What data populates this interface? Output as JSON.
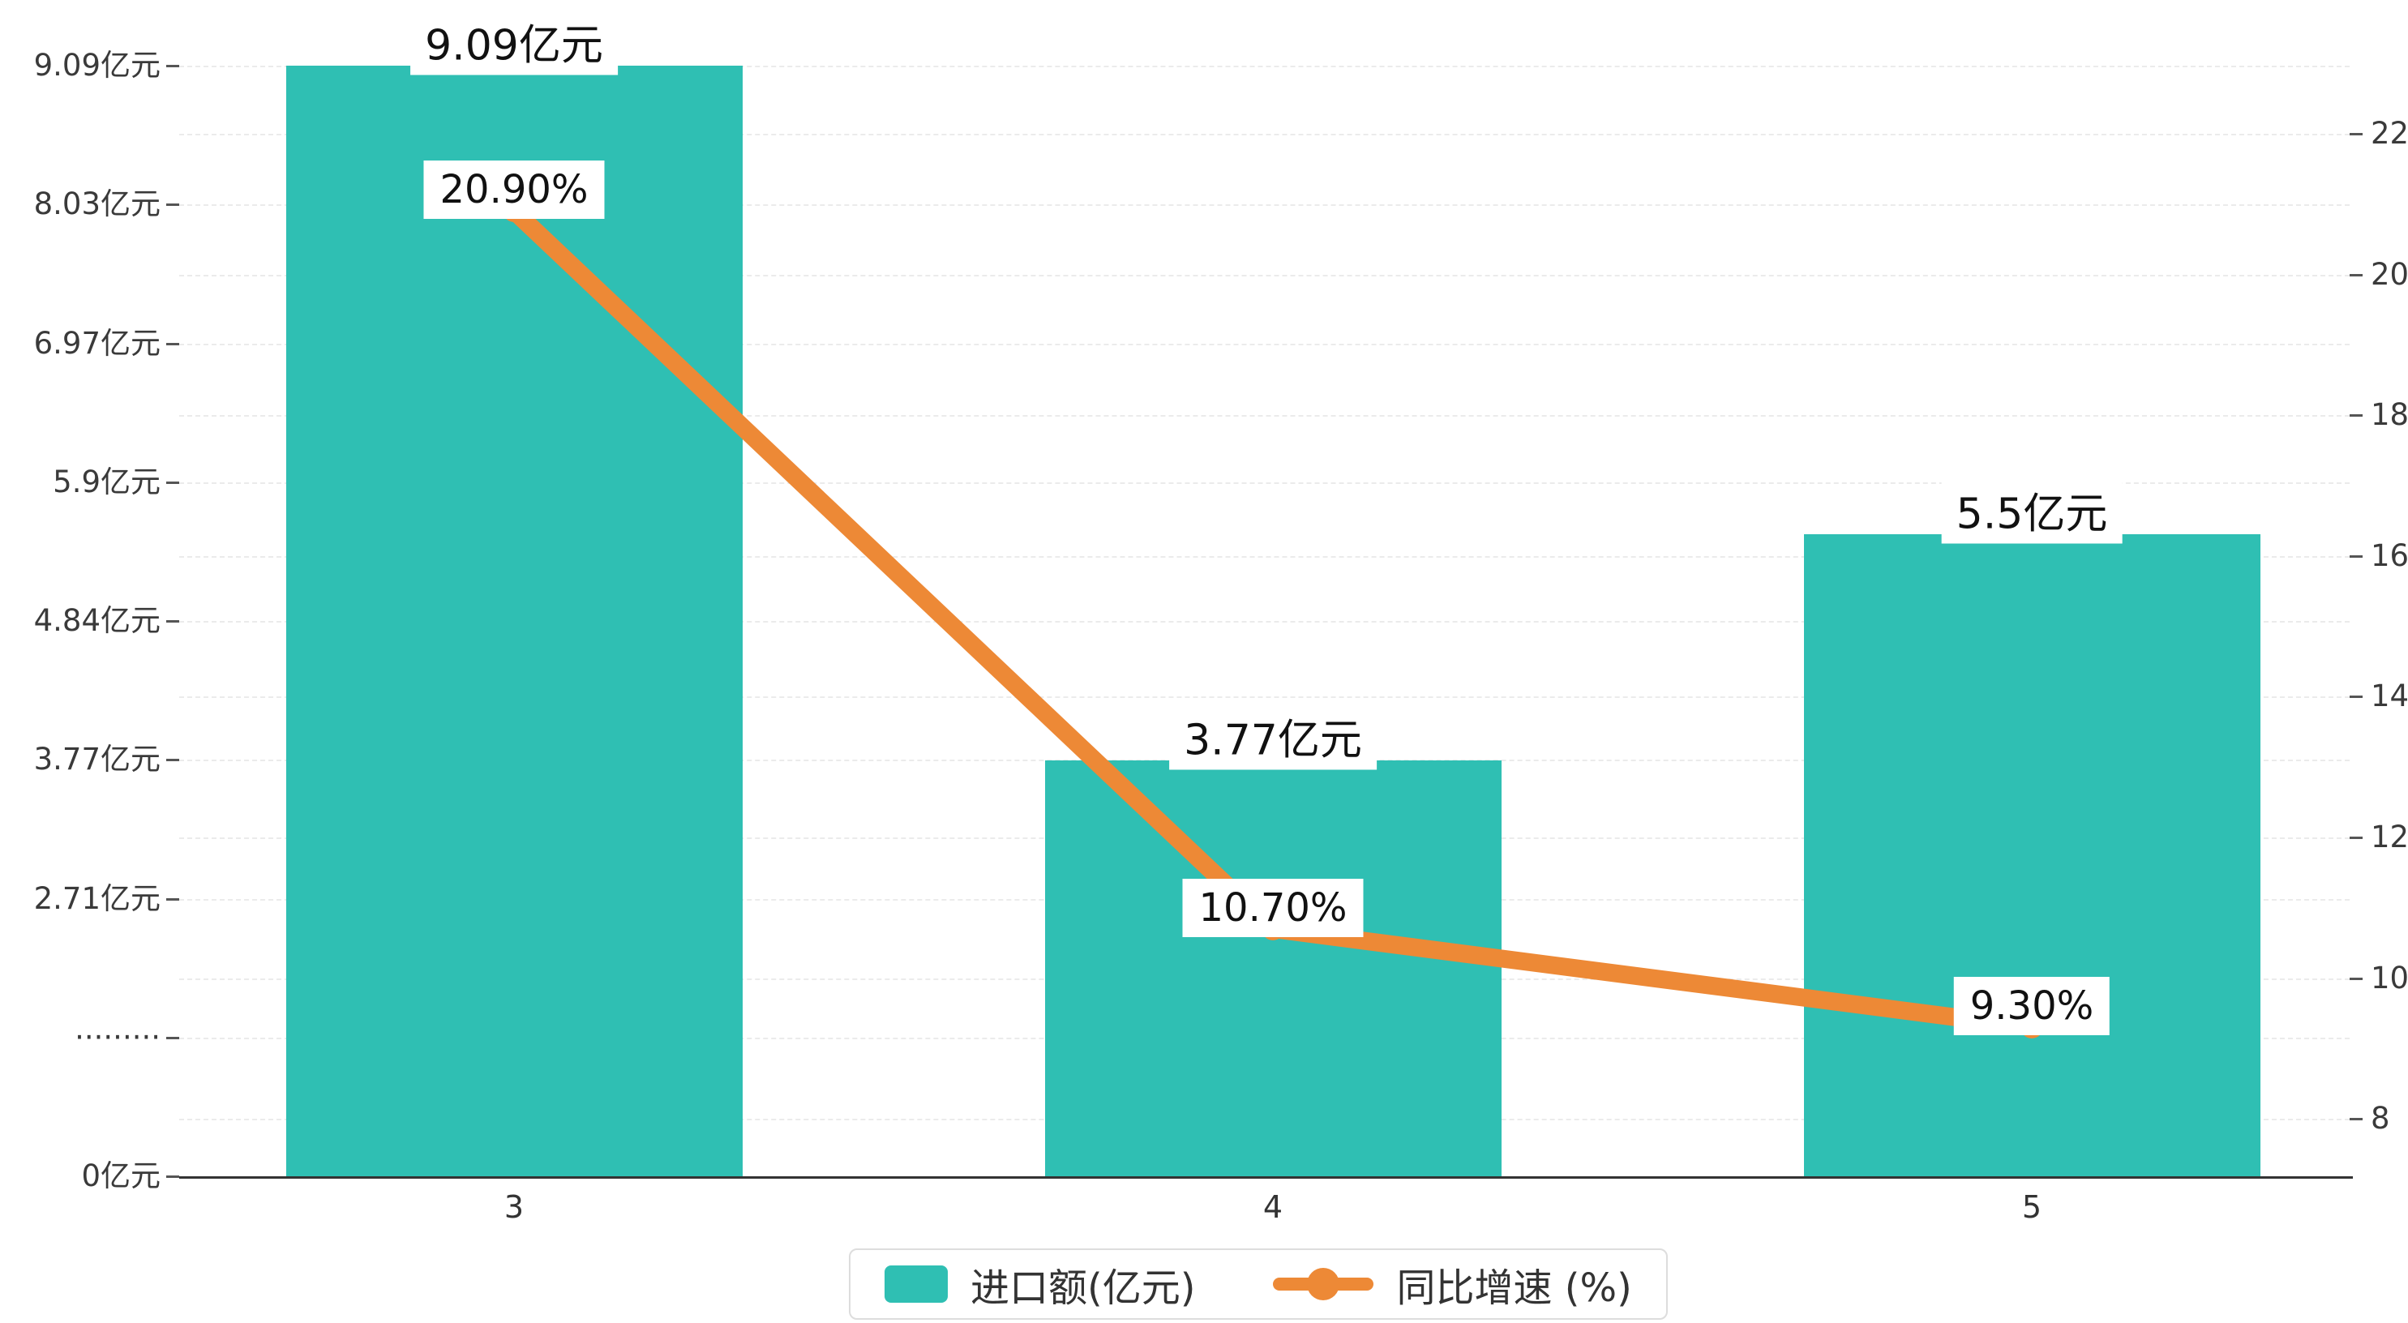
{
  "chart_data": {
    "type": "bar+line",
    "categories": [
      "3",
      "4",
      "5"
    ],
    "series": [
      {
        "name": "进口额(亿元)",
        "type": "bar",
        "values": [
          9.09,
          3.77,
          5.5
        ],
        "data_labels": [
          "9.09亿元",
          "3.77亿元",
          "5.5亿元"
        ],
        "color": "#2fbfb3"
      },
      {
        "name": "同比增速 (%)",
        "type": "line",
        "values": [
          20.9,
          10.7,
          9.3
        ],
        "data_labels": [
          "20.90%",
          "10.70%",
          "9.30%"
        ],
        "color": "#ed8936"
      }
    ],
    "left_axis": {
      "tick_labels": [
        "9.09亿元",
        "8.03亿元",
        "6.97亿元",
        "5.9亿元",
        "4.84亿元",
        "3.77亿元",
        "2.71亿元",
        "·········",
        "0亿元"
      ],
      "max": 9.09,
      "linear_min_value": 2.71,
      "min_label_value": 0
    },
    "right_axis": {
      "tick_labels": [
        "22",
        "20",
        "18",
        "16",
        "14",
        "12",
        "10",
        "8"
      ],
      "max": 22,
      "min": 8,
      "step": 2
    },
    "legend": {
      "items": [
        {
          "label": "进口额(亿元)",
          "marker": "bar"
        },
        {
          "label": "同比增速 (%)",
          "marker": "line"
        }
      ]
    },
    "colors": {
      "bar": "#2fbfb3",
      "line": "#ed8936",
      "label_bg": "#ffffff",
      "grid": "#ebebeb",
      "axis": "#333333"
    },
    "grid": "dashed",
    "legend_position": "bottom-center"
  }
}
